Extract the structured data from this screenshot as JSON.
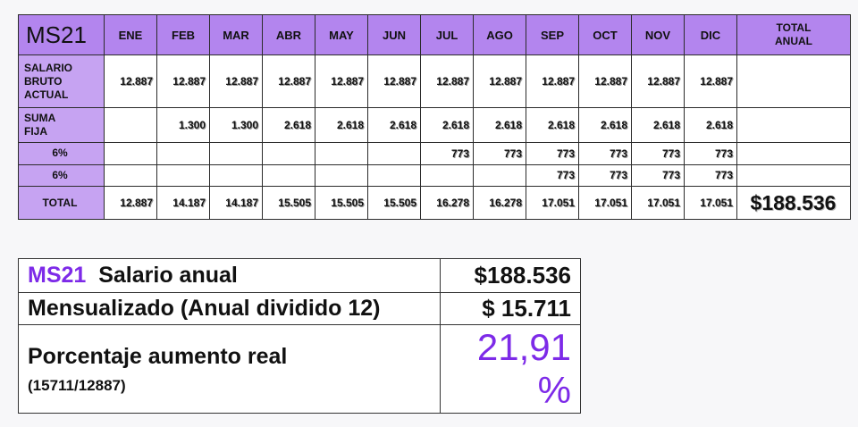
{
  "main_table": {
    "brand": "MS21",
    "months": [
      "ENE",
      "FEB",
      "MAR",
      "ABR",
      "MAY",
      "JUN",
      "JUL",
      "AGO",
      "SEP",
      "OCT",
      "NOV",
      "DIC"
    ],
    "total_header_line1": "TOTAL",
    "total_header_line2": "ANUAL",
    "rows": [
      {
        "label_lines": [
          "SALARIO",
          "BRUTO",
          "ACTUAL"
        ],
        "values": [
          "12.887",
          "12.887",
          "12.887",
          "12.887",
          "12.887",
          "12.887",
          "12.887",
          "12.887",
          "12.887",
          "12.887",
          "12.887",
          "12.887"
        ],
        "total": ""
      },
      {
        "label_lines": [
          "SUMA",
          "FIJA"
        ],
        "values": [
          "",
          "1.300",
          "1.300",
          "2.618",
          "2.618",
          "2.618",
          "2.618",
          "2.618",
          "2.618",
          "2.618",
          "2.618",
          "2.618"
        ],
        "total": ""
      },
      {
        "label_lines": [
          "6%"
        ],
        "values": [
          "",
          "",
          "",
          "",
          "",
          "",
          "773",
          "773",
          "773",
          "773",
          "773",
          "773"
        ],
        "total": ""
      },
      {
        "label_lines": [
          "6%"
        ],
        "values": [
          "",
          "",
          "",
          "",
          "",
          "",
          "",
          "",
          "773",
          "773",
          "773",
          "773"
        ],
        "total": ""
      },
      {
        "label_lines": [
          "TOTAL"
        ],
        "values": [
          "12.887",
          "14.187",
          "14.187",
          "15.505",
          "15.505",
          "15.505",
          "16.278",
          "16.278",
          "17.051",
          "17.051",
          "17.051",
          "17.051"
        ],
        "total": "$188.536"
      }
    ]
  },
  "summary": {
    "row1_brand": "MS21",
    "row1_label": "Salario anual",
    "row1_value": "$188.536",
    "row2_label": "Mensualizado (Anual dividido 12)",
    "row2_value": "$ 15.711",
    "row3_label": "Porcentaje aumento real",
    "row3_note": "(15711/12887)",
    "row3_value": "21,91 %"
  }
}
